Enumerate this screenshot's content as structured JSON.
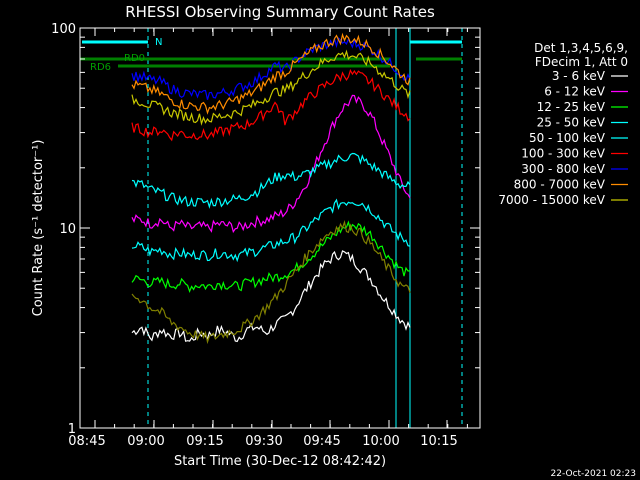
{
  "chart_data": {
    "type": "line",
    "title": "RHESSI Observing Summary Count Rates",
    "xlabel": "Start Time (30-Dec-12 08:42:42)",
    "ylabel": "Count Rate (s⁻¹ detector⁻¹)",
    "y_scale": "log",
    "ylim": [
      1,
      100
    ],
    "xlim_minutes_label": [
      "08:42:42",
      "10:22:00"
    ],
    "x_ticks": [
      "08:45",
      "09:00",
      "09:15",
      "09:30",
      "09:45",
      "10:00",
      "10:15"
    ],
    "y_ticks": [
      "1",
      "10",
      "100"
    ],
    "grid": false,
    "legend_position": "right",
    "legend_header": [
      "Det 1,3,4,5,6,9,",
      "FDecim 1, Att 0"
    ],
    "footer_date": "22-Oct-2021 02:23",
    "flag_labels": [
      "N",
      "RD0",
      "RD6"
    ],
    "series": [
      {
        "name": "3 - 6 keV",
        "color": "#ffffff",
        "x": [
          0,
          1,
          2,
          3,
          4,
          5,
          6,
          7,
          8,
          9,
          10,
          11,
          12,
          13,
          14,
          15,
          16,
          17,
          18,
          19,
          20,
          21,
          22,
          23,
          24,
          25,
          26,
          27,
          28,
          29
        ],
        "values": [
          3.0,
          3.2,
          2.8,
          3.1,
          2.9,
          3.0,
          2.7,
          3.0,
          2.9,
          3.1,
          3.0,
          2.8,
          3.1,
          3.2,
          3.0,
          3.3,
          3.5,
          4.0,
          4.8,
          5.6,
          6.5,
          7.2,
          7.5,
          7.0,
          6.2,
          5.5,
          4.6,
          4.0,
          3.5,
          3.2
        ]
      },
      {
        "name": "6 - 12 keV",
        "color": "#ff00ff",
        "x": [
          0,
          1,
          2,
          3,
          4,
          5,
          6,
          7,
          8,
          9,
          10,
          11,
          12,
          13,
          14,
          15,
          16,
          17,
          18,
          19,
          20,
          21,
          22,
          23,
          24,
          25,
          26,
          27,
          28,
          29
        ],
        "values": [
          11,
          11,
          10.5,
          11,
          10,
          10.5,
          10,
          10.2,
          10,
          10.5,
          10.3,
          10,
          10.4,
          10.8,
          11,
          11.5,
          12,
          13.5,
          16,
          20,
          26,
          33,
          40,
          44,
          42,
          36,
          28,
          22,
          17,
          14
        ]
      },
      {
        "name": "12 - 25 keV",
        "color": "#00ff00",
        "x": [
          0,
          1,
          2,
          3,
          4,
          5,
          6,
          7,
          8,
          9,
          10,
          11,
          12,
          13,
          14,
          15,
          16,
          17,
          18,
          19,
          20,
          21,
          22,
          23,
          24,
          25,
          26,
          27,
          28,
          29
        ],
        "values": [
          5.6,
          5.5,
          5.3,
          5.4,
          5.2,
          5.3,
          5.1,
          5.2,
          5.1,
          5.3,
          5.2,
          5.1,
          5.3,
          5.4,
          5.6,
          5.7,
          5.9,
          6.2,
          6.8,
          7.5,
          8.3,
          9.2,
          10.0,
          10.4,
          10.0,
          9.2,
          8.0,
          7.0,
          6.2,
          5.8
        ]
      },
      {
        "name": "25 - 50 keV",
        "color": "#00ffff",
        "x": [
          0,
          1,
          2,
          3,
          4,
          5,
          6,
          7,
          8,
          9,
          10,
          11,
          12,
          13,
          14,
          15,
          16,
          17,
          18,
          19,
          20,
          21,
          22,
          23,
          24,
          25,
          26,
          27,
          28,
          29
        ],
        "values": [
          8.2,
          8.0,
          7.6,
          7.8,
          7.4,
          7.5,
          7.3,
          7.4,
          7.3,
          7.5,
          7.4,
          7.3,
          7.5,
          7.7,
          8.0,
          8.3,
          8.6,
          9.0,
          9.8,
          10.8,
          11.8,
          12.8,
          13.5,
          13.8,
          13.3,
          12.3,
          11.0,
          9.8,
          9.0,
          8.5
        ]
      },
      {
        "name": "50 - 100 keV",
        "color": "#00ffff",
        "x": [
          0,
          1,
          2,
          3,
          4,
          5,
          6,
          7,
          8,
          9,
          10,
          11,
          12,
          13,
          14,
          15,
          16,
          17,
          18,
          19,
          20,
          21,
          22,
          23,
          24,
          25,
          26,
          27,
          28,
          29
        ],
        "values": [
          17,
          16.5,
          15.5,
          15,
          14.2,
          13.8,
          13.5,
          13.5,
          13.4,
          13.6,
          13.8,
          14,
          14.5,
          15.2,
          16.5,
          18,
          18.5,
          18,
          18.5,
          19.5,
          20.5,
          21.5,
          22.5,
          23,
          22,
          20.5,
          19,
          17.5,
          16.5,
          16
        ]
      },
      {
        "name": "100 - 300 keV",
        "color": "#ff0000",
        "x": [
          0,
          1,
          2,
          3,
          4,
          5,
          6,
          7,
          8,
          9,
          10,
          11,
          12,
          13,
          14,
          15,
          16,
          17,
          18,
          19,
          20,
          21,
          22,
          23,
          24,
          25,
          26,
          27,
          28,
          29
        ],
        "values": [
          32,
          31,
          30,
          31,
          29,
          30,
          29,
          29.5,
          29,
          30,
          31,
          32,
          33,
          35,
          38,
          42,
          34,
          38,
          43,
          47,
          51,
          55,
          58,
          59,
          57,
          53,
          48,
          43,
          39,
          36
        ]
      },
      {
        "name": "300 - 800 keV",
        "color": "#0000ff",
        "x": [
          0,
          1,
          2,
          3,
          4,
          5,
          6,
          7,
          8,
          9,
          10,
          11,
          12,
          13,
          14,
          15,
          16,
          17,
          18,
          19,
          20,
          21,
          22,
          23,
          24,
          25,
          26,
          27,
          28,
          29
        ],
        "values": [
          58,
          57,
          55,
          54,
          50,
          48,
          47,
          46.5,
          46,
          47,
          48,
          50,
          52,
          55,
          60,
          65,
          62,
          68,
          74,
          79,
          82,
          84,
          85,
          84,
          82,
          78,
          72,
          66,
          60,
          55
        ]
      },
      {
        "name": "800 - 7000 keV",
        "color": "#ff8c00",
        "x": [
          0,
          1,
          2,
          3,
          4,
          5,
          6,
          7,
          8,
          9,
          10,
          11,
          12,
          13,
          14,
          15,
          16,
          17,
          18,
          19,
          20,
          21,
          22,
          23,
          24,
          25,
          26,
          27,
          28,
          29
        ],
        "values": [
          52,
          51,
          49,
          47,
          44,
          42,
          41,
          40.5,
          40,
          41,
          42,
          44,
          46,
          49,
          53,
          58,
          60,
          66,
          72,
          78,
          83,
          87,
          89,
          88,
          85,
          80,
          73,
          66,
          59,
          54
        ]
      },
      {
        "name": "7000 - 15000 keV",
        "color": "#c8c800",
        "x": [
          0,
          1,
          2,
          3,
          4,
          5,
          6,
          7,
          8,
          9,
          10,
          11,
          12,
          13,
          14,
          15,
          16,
          17,
          18,
          19,
          20,
          21,
          22,
          23,
          24,
          25,
          26,
          27,
          28,
          29
        ],
        "values": [
          44,
          43,
          41,
          40,
          38,
          37,
          36,
          35.5,
          35,
          36,
          37,
          38,
          40,
          42,
          45,
          48,
          49,
          53,
          58,
          63,
          68,
          72,
          74,
          73,
          70,
          66,
          60,
          55,
          50,
          46
        ]
      },
      {
        "name": "",
        "color": "#808000",
        "x": [
          0,
          1,
          2,
          3,
          4,
          5,
          6,
          7,
          8,
          9,
          10,
          11,
          12,
          13,
          14,
          15,
          16,
          17,
          18,
          19,
          20,
          21,
          22,
          23,
          24,
          25,
          26,
          27,
          28,
          29
        ],
        "values": [
          4.6,
          4.4,
          4.0,
          3.8,
          3.4,
          3.2,
          3.0,
          2.9,
          2.8,
          2.9,
          3.0,
          3.1,
          3.3,
          3.6,
          4.0,
          4.5,
          5.2,
          6.0,
          7.0,
          8.0,
          9.0,
          9.8,
          10.2,
          10.0,
          9.3,
          8.2,
          7.0,
          6.0,
          5.2,
          4.8
        ]
      }
    ]
  }
}
